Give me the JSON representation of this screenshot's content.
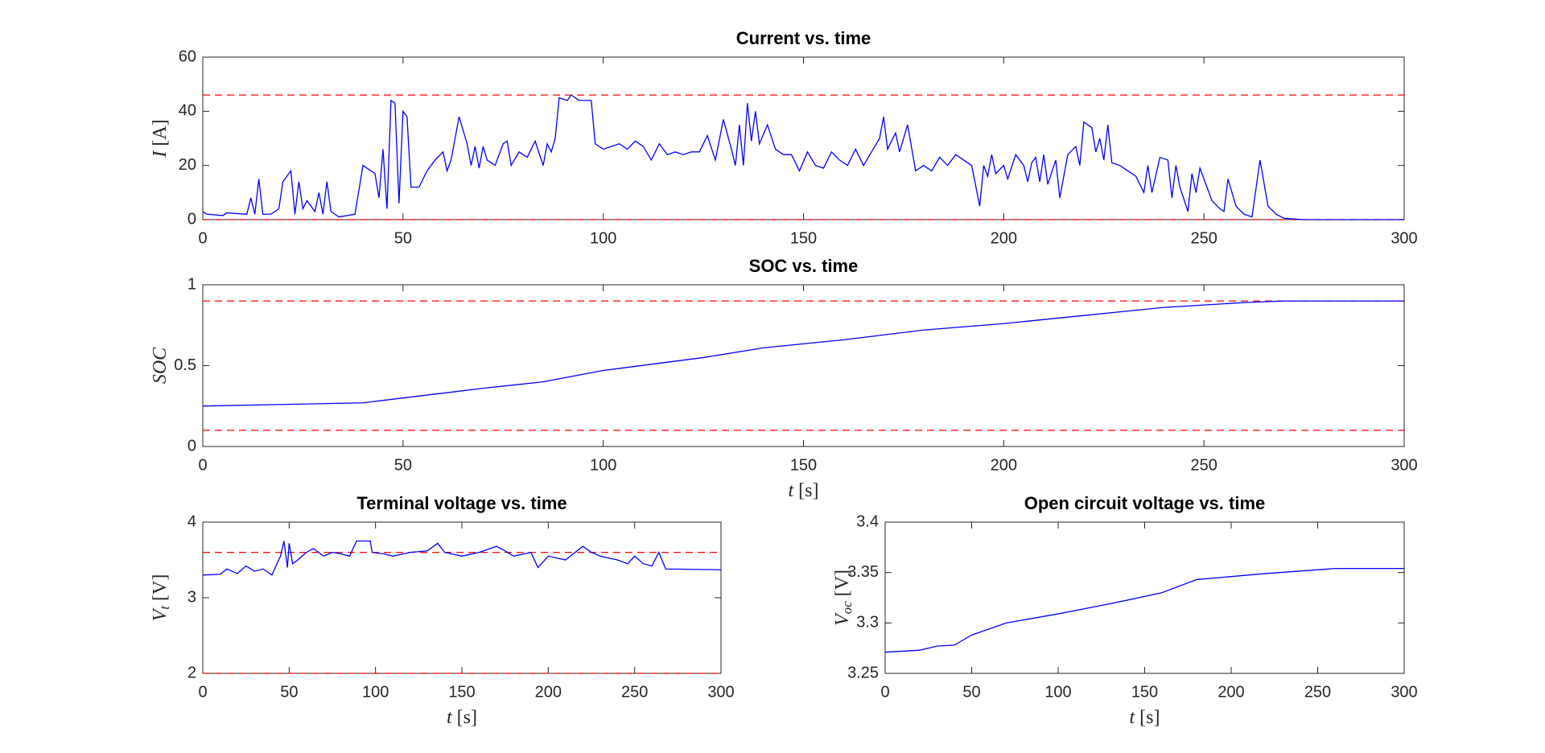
{
  "chart_data": [
    {
      "type": "line",
      "title": "Current vs. time",
      "ylabel_symbol": "I",
      "ylabel_unit": "[A]",
      "x": [
        0,
        1,
        5,
        6,
        11,
        12,
        13,
        14,
        15,
        17,
        19,
        20,
        22,
        23,
        24,
        25,
        26,
        28,
        29,
        30,
        31,
        32,
        34,
        38,
        40,
        43,
        44,
        45,
        46,
        47,
        48,
        49,
        50,
        51,
        52,
        54,
        56,
        58,
        60,
        61,
        62,
        64,
        66,
        67,
        68,
        69,
        70,
        71,
        73,
        75,
        76,
        77,
        79,
        81,
        83,
        85,
        86,
        87,
        88,
        89,
        91,
        92,
        94,
        97,
        98,
        100,
        102,
        104,
        106,
        108,
        110,
        112,
        114,
        116,
        118,
        120,
        122,
        124,
        126,
        128,
        130,
        132,
        133,
        134,
        135,
        136,
        137,
        138,
        139,
        141,
        143,
        145,
        147,
        149,
        151,
        153,
        155,
        157,
        159,
        161,
        163,
        165,
        167,
        169,
        170,
        171,
        173,
        174,
        176,
        178,
        180,
        182,
        184,
        186,
        188,
        190,
        192,
        194,
        195,
        196,
        197,
        198,
        200,
        201,
        203,
        205,
        206,
        207,
        208,
        209,
        210,
        211,
        213,
        214,
        216,
        218,
        219,
        220,
        222,
        223,
        224,
        225,
        226,
        227,
        229,
        231,
        233,
        235,
        236,
        237,
        239,
        241,
        242,
        243,
        244,
        246,
        247,
        248,
        249,
        250,
        252,
        254,
        255,
        256,
        258,
        260,
        262,
        264,
        266,
        268,
        270,
        275,
        300
      ],
      "series": [
        {
          "color": "#0000ff",
          "values": [
            3,
            2,
            1.5,
            2.5,
            2,
            8,
            2,
            15,
            2,
            2,
            4,
            14,
            18,
            2,
            14,
            4,
            7,
            3,
            10,
            2,
            14,
            3,
            1,
            2,
            20,
            17,
            8,
            26,
            4,
            44,
            43,
            6,
            40,
            38,
            12,
            12,
            18,
            22,
            25,
            18,
            22,
            38,
            28,
            20,
            27,
            19,
            27,
            22,
            20,
            28,
            29,
            20,
            25,
            23,
            29,
            20,
            28,
            25,
            30,
            45,
            44,
            46,
            44,
            44,
            28,
            26,
            27,
            28,
            26,
            29,
            27,
            22,
            28,
            24,
            25,
            24,
            25,
            25,
            31,
            22,
            37,
            26,
            20,
            35,
            20,
            43,
            29,
            40,
            28,
            35,
            26,
            24,
            24,
            18,
            25,
            20,
            19,
            25,
            22,
            20,
            26,
            20,
            25,
            30,
            38,
            26,
            32,
            25,
            35,
            18,
            20,
            18,
            23,
            20,
            24,
            22,
            20,
            5,
            20,
            16,
            24,
            17,
            20,
            15,
            24,
            20,
            14,
            21,
            23,
            14,
            24,
            13,
            22,
            8,
            24,
            27,
            20,
            36,
            34,
            25,
            30,
            22,
            35,
            21,
            20,
            18,
            16,
            10,
            20,
            10,
            23,
            22,
            8,
            20,
            12,
            3,
            17,
            10,
            19,
            15,
            7,
            4,
            3,
            15,
            5,
            2,
            1,
            22,
            5,
            2,
            0.5,
            0,
            0
          ]
        }
      ],
      "reference_lines": {
        "color": "#ff0000",
        "values": [
          46,
          0
        ]
      },
      "xlim": [
        0,
        300
      ],
      "xticks": [
        0,
        50,
        100,
        150,
        200,
        250,
        300
      ],
      "ylim": [
        0,
        60
      ],
      "yticks": [
        0,
        20,
        40,
        60
      ]
    },
    {
      "type": "line",
      "title": "SOC vs. time",
      "ylabel_symbol": "SOC",
      "xlabel_symbol": "t",
      "xlabel_unit": "[s]",
      "x": [
        0,
        20,
        40,
        50,
        60,
        70,
        85,
        100,
        125,
        140,
        160,
        180,
        200,
        220,
        240,
        260,
        270,
        300
      ],
      "series": [
        {
          "color": "#0000ff",
          "values": [
            0.25,
            0.26,
            0.27,
            0.3,
            0.33,
            0.36,
            0.4,
            0.47,
            0.55,
            0.61,
            0.66,
            0.72,
            0.76,
            0.81,
            0.86,
            0.89,
            0.9,
            0.9
          ]
        }
      ],
      "reference_lines": {
        "color": "#ff0000",
        "values": [
          0.9,
          0.1
        ]
      },
      "xlim": [
        0,
        300
      ],
      "xticks": [
        0,
        50,
        100,
        150,
        200,
        250,
        300
      ],
      "ylim": [
        0,
        1
      ],
      "yticks": [
        0,
        0.5,
        1
      ]
    },
    {
      "type": "line",
      "title": "Terminal voltage vs. time",
      "ylabel_symbol": "V",
      "ylabel_subscript": "t",
      "ylabel_unit": "[V]",
      "xlabel_symbol": "t",
      "xlabel_unit": "[s]",
      "x": [
        0,
        10,
        14,
        20,
        25,
        30,
        35,
        40,
        45,
        47,
        49,
        50,
        52,
        55,
        60,
        64,
        70,
        75,
        80,
        85,
        89,
        97,
        98,
        105,
        110,
        120,
        130,
        136,
        140,
        150,
        160,
        170,
        175,
        180,
        190,
        194,
        200,
        210,
        220,
        225,
        230,
        240,
        246,
        250,
        255,
        260,
        264,
        268,
        300
      ],
      "series": [
        {
          "color": "#0000ff",
          "values": [
            3.3,
            3.31,
            3.38,
            3.32,
            3.42,
            3.35,
            3.38,
            3.3,
            3.55,
            3.75,
            3.4,
            3.72,
            3.45,
            3.5,
            3.6,
            3.65,
            3.55,
            3.6,
            3.58,
            3.55,
            3.75,
            3.75,
            3.6,
            3.58,
            3.55,
            3.6,
            3.62,
            3.72,
            3.6,
            3.55,
            3.6,
            3.68,
            3.62,
            3.55,
            3.6,
            3.4,
            3.55,
            3.5,
            3.68,
            3.6,
            3.55,
            3.5,
            3.45,
            3.55,
            3.45,
            3.42,
            3.6,
            3.38,
            3.37
          ]
        }
      ],
      "reference_lines": {
        "color": "#ff0000",
        "values": [
          3.6,
          2
        ]
      },
      "xlim": [
        0,
        300
      ],
      "xticks": [
        0,
        50,
        100,
        150,
        200,
        250,
        300
      ],
      "ylim": [
        2,
        4
      ],
      "yticks": [
        2,
        3,
        4
      ]
    },
    {
      "type": "line",
      "title": "Open circuit voltage vs. time",
      "ylabel_symbol": "V",
      "ylabel_subscript": "oc",
      "ylabel_unit": "[V]",
      "xlabel_symbol": "t",
      "xlabel_unit": "[s]",
      "x": [
        0,
        20,
        30,
        40,
        50,
        70,
        100,
        130,
        160,
        180,
        220,
        260,
        300
      ],
      "series": [
        {
          "color": "#0000ff",
          "values": [
            3.271,
            3.273,
            3.277,
            3.278,
            3.288,
            3.3,
            3.309,
            3.319,
            3.33,
            3.343,
            3.349,
            3.354,
            3.354
          ]
        }
      ],
      "xlim": [
        0,
        300
      ],
      "xticks": [
        0,
        50,
        100,
        150,
        200,
        250,
        300
      ],
      "ylim": [
        3.25,
        3.4
      ],
      "yticks": [
        3.25,
        3.3,
        3.35,
        3.4
      ]
    }
  ]
}
